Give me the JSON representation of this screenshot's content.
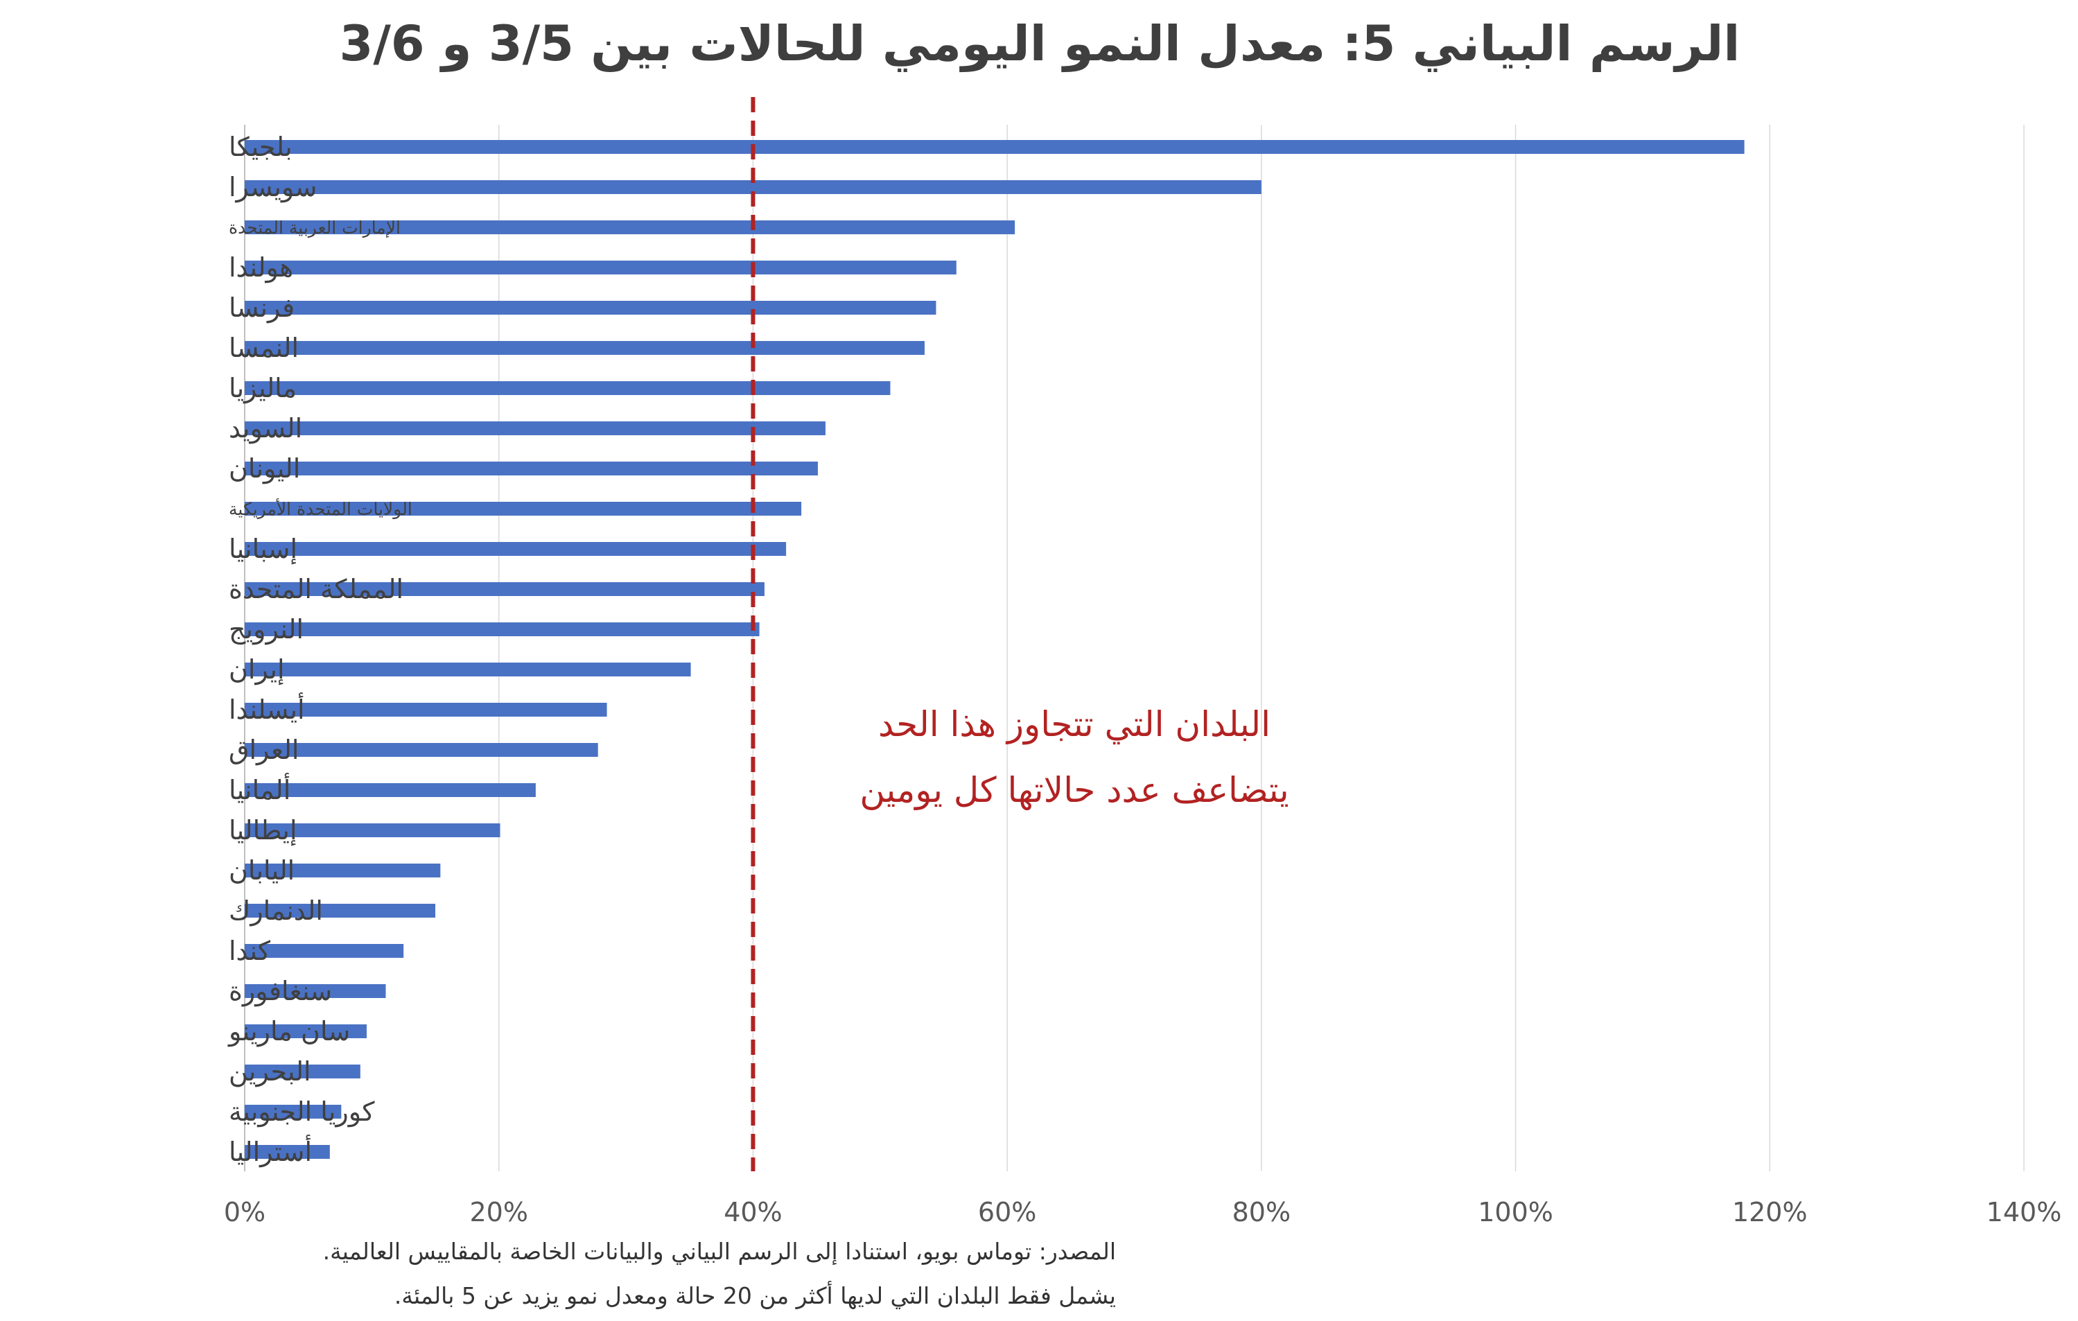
{
  "chart_data": {
    "type": "bar",
    "orientation": "horizontal",
    "title": "الرسم البياني 5: معدل النمو اليومي للحالات بين 3/5 و 3/6",
    "categories": [
      "بلجيكا",
      "سويسرا",
      "الإمارات العربية المتحدة",
      "هولندا",
      "فرنسا",
      "النمسا",
      "ماليزيا",
      "السويد",
      "اليونان",
      "الولايات المتحدة الأمريكية",
      "إسبانيا",
      "المملكة المتحدة",
      "النرويج",
      "إيران",
      "أيسلندا",
      "العراق",
      "ألمانيا",
      "إيطاليا",
      "اليابان",
      "الدنمارك",
      "كندا",
      "سنغافورة",
      "سان مارينو",
      "البحرين",
      "كوريا الجنوبية",
      "أستراليا"
    ],
    "values": [
      118,
      80,
      60.6,
      56,
      54.4,
      53.5,
      50.8,
      45.7,
      45.1,
      43.8,
      42.6,
      40.9,
      40.5,
      35.1,
      28.5,
      27.8,
      22.9,
      20.1,
      15.4,
      15,
      12.5,
      11.1,
      9.6,
      9.1,
      7.6,
      6.7
    ],
    "xlim": [
      0,
      140
    ],
    "x_ticks": [
      "0%",
      "20%",
      "40%",
      "60%",
      "80%",
      "100%",
      "120%",
      "140%"
    ],
    "grid": "vertical",
    "bar_color": "#4a72c4",
    "reference_line": {
      "value": 40,
      "color": "#b22222",
      "style": "dashed"
    },
    "annotation": [
      "البلدان التي تتجاوز هذا الحد",
      "يتضاعف عدد حالاتها كل يومين"
    ],
    "annotation_color": "#b22222"
  },
  "notes": {
    "source": "المصدر: توماس بويو، استنادا إلى الرسم البياني والبيانات الخاصة بالمقاييس العالمية.",
    "criteria": "يشمل فقط البلدان التي لديها أكثر من 20 حالة ومعدل نمو يزيد عن 5 بالمئة."
  }
}
